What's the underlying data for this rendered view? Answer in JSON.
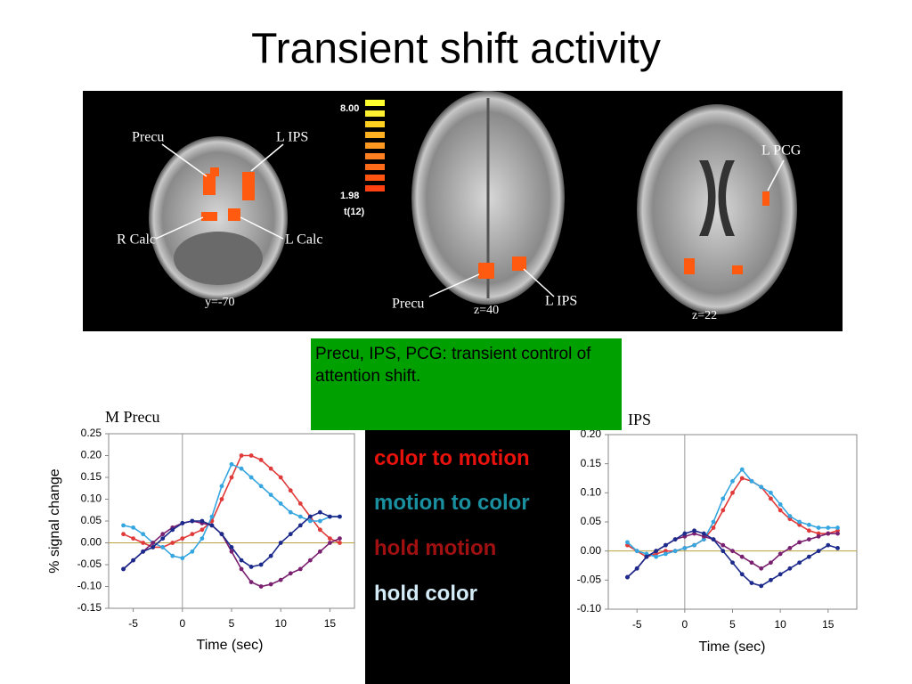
{
  "title": "Transient shift activity",
  "brain_panel": {
    "labels": [
      "Precu",
      "L IPS",
      "R Calc",
      "L Calc",
      "y=-70",
      "Precu",
      "z=40",
      "L IPS",
      "L PCG",
      "z=22"
    ],
    "colorbar": {
      "max_label": "8.00",
      "min_label": "1.98",
      "stat_label": "t(12)"
    }
  },
  "note": "Precu, IPS, PCG: transient control of attention shift.",
  "legend": [
    {
      "text": "color to motion",
      "color": "#e8120c"
    },
    {
      "text": "motion to color",
      "color": "#1a8fa0"
    },
    {
      "text": "hold motion",
      "color": "#a01010"
    },
    {
      "text": "hold color",
      "color": "#d4ecf7"
    }
  ],
  "chart_data": [
    {
      "type": "line",
      "title": "M Precu",
      "x_label": "Time (sec)",
      "y_label": "% signal change",
      "x": [
        -6,
        -5,
        -4,
        -3,
        -2,
        -1,
        0,
        1,
        2,
        3,
        4,
        5,
        6,
        7,
        8,
        9,
        10,
        11,
        12,
        13,
        14,
        15,
        16
      ],
      "xlim": [
        -7.5,
        17.5
      ],
      "xticks": [
        -5,
        0,
        5,
        10,
        15
      ],
      "ylim": [
        -0.15,
        0.25
      ],
      "yticks": [
        {
          "value": -0.15,
          "label": "-0.15"
        },
        {
          "value": -0.1,
          "label": "-0.10"
        },
        {
          "value": -0.05,
          "label": "-0.05"
        },
        {
          "value": 0,
          "label": "0.00"
        },
        {
          "value": 0.05,
          "label": "0.05"
        },
        {
          "value": 0.1,
          "label": "0.10"
        },
        {
          "value": 0.15,
          "label": "0.15"
        },
        {
          "value": 0.2,
          "label": "0.20"
        },
        {
          "value": 0.25,
          "label": "0.25"
        }
      ],
      "series": [
        {
          "color": "#e03a3a",
          "values": [
            0.02,
            0.01,
            0.0,
            -0.01,
            -0.01,
            0.0,
            0.01,
            0.02,
            0.03,
            0.05,
            0.1,
            0.15,
            0.2,
            0.2,
            0.19,
            0.17,
            0.15,
            0.12,
            0.09,
            0.06,
            0.03,
            0.01,
            0.0
          ]
        },
        {
          "color": "#36a6e0",
          "values": [
            0.04,
            0.035,
            0.02,
            0.0,
            -0.01,
            -0.03,
            -0.035,
            -0.02,
            0.01,
            0.06,
            0.13,
            0.18,
            0.17,
            0.15,
            0.13,
            0.11,
            0.09,
            0.07,
            0.06,
            0.05,
            0.05,
            0.06,
            0.06
          ]
        },
        {
          "color": "#7a2070",
          "values": [
            -0.06,
            -0.04,
            -0.02,
            0.0,
            0.02,
            0.035,
            0.045,
            0.05,
            0.045,
            0.04,
            0.02,
            -0.02,
            -0.06,
            -0.09,
            -0.1,
            -0.095,
            -0.085,
            -0.07,
            -0.06,
            -0.04,
            -0.02,
            0.0,
            0.01
          ]
        },
        {
          "color": "#1c2a8c",
          "values": [
            -0.06,
            -0.04,
            -0.02,
            -0.01,
            0.01,
            0.03,
            0.045,
            0.05,
            0.05,
            0.04,
            0.02,
            -0.01,
            -0.04,
            -0.055,
            -0.05,
            -0.03,
            0.0,
            0.02,
            0.04,
            0.06,
            0.07,
            0.06,
            0.06
          ]
        }
      ]
    },
    {
      "type": "line",
      "title": "IPS",
      "x_label": "Time (sec)",
      "x": [
        -6,
        -5,
        -4,
        -3,
        -2,
        -1,
        0,
        1,
        2,
        3,
        4,
        5,
        6,
        7,
        8,
        9,
        10,
        11,
        12,
        13,
        14,
        15,
        16
      ],
      "xlim": [
        -8,
        18
      ],
      "xticks": [
        -5,
        0,
        5,
        10,
        15
      ],
      "ylim": [
        -0.1,
        0.2
      ],
      "yticks": [
        {
          "value": -0.1,
          "label": "-0.10"
        },
        {
          "value": -0.05,
          "label": "-0.05"
        },
        {
          "value": 0,
          "label": "0.00"
        },
        {
          "value": 0.05,
          "label": "0.05"
        },
        {
          "value": 0.1,
          "label": "0.10"
        },
        {
          "value": 0.15,
          "label": "0.15"
        },
        {
          "value": 0.2,
          "label": "0.20"
        }
      ],
      "series": [
        {
          "color": "#e03a3a",
          "values": [
            0.01,
            0.0,
            -0.01,
            -0.005,
            0.0,
            0.0,
            0.005,
            0.01,
            0.02,
            0.04,
            0.07,
            0.1,
            0.125,
            0.12,
            0.11,
            0.09,
            0.07,
            0.055,
            0.045,
            0.035,
            0.03,
            0.03,
            0.035
          ]
        },
        {
          "color": "#36a6e0",
          "values": [
            0.015,
            0.0,
            -0.005,
            -0.01,
            -0.005,
            0.0,
            0.005,
            0.01,
            0.02,
            0.05,
            0.09,
            0.12,
            0.14,
            0.12,
            0.11,
            0.1,
            0.08,
            0.06,
            0.05,
            0.045,
            0.04,
            0.04,
            0.04
          ]
        },
        {
          "color": "#7a2070",
          "values": [
            -0.045,
            -0.03,
            -0.01,
            0.0,
            0.01,
            0.02,
            0.025,
            0.03,
            0.025,
            0.02,
            0.01,
            0.0,
            -0.01,
            -0.02,
            -0.03,
            -0.02,
            -0.005,
            0.005,
            0.015,
            0.02,
            0.025,
            0.03,
            0.03
          ]
        },
        {
          "color": "#1c2a8c",
          "values": [
            -0.045,
            -0.03,
            -0.01,
            0.0,
            0.01,
            0.02,
            0.03,
            0.035,
            0.03,
            0.02,
            0.0,
            -0.02,
            -0.04,
            -0.055,
            -0.06,
            -0.05,
            -0.04,
            -0.03,
            -0.02,
            -0.01,
            0.0,
            0.01,
            0.005
          ]
        }
      ]
    }
  ]
}
